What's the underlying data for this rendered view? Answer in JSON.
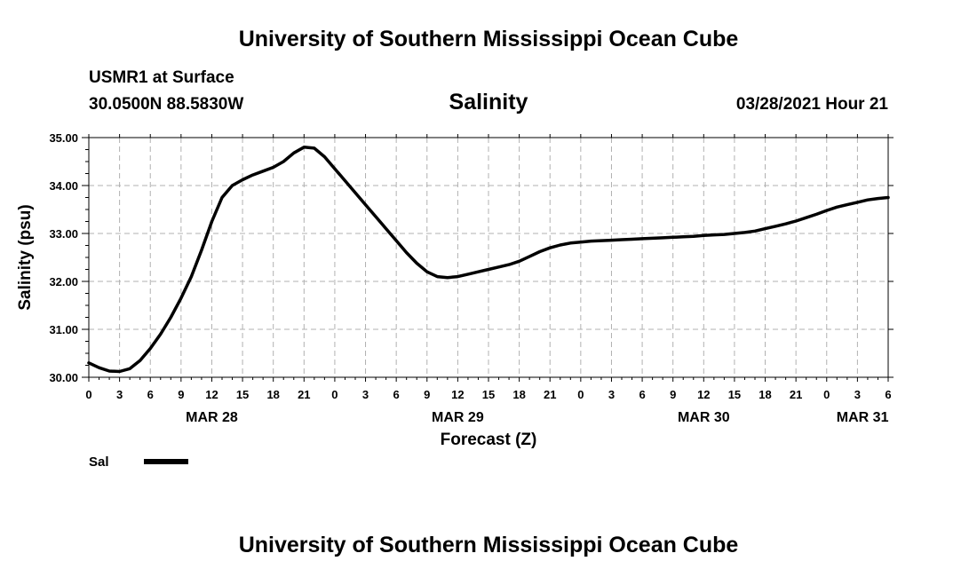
{
  "header": {
    "title": "University of Southern Mississippi Ocean Cube",
    "station": "USMR1 at Surface",
    "coordinates": "30.0500N  88.5830W",
    "timestamp": "03/28/2021 Hour 21"
  },
  "footer": {
    "title": "University of Southern Mississippi Ocean Cube"
  },
  "chart_data": {
    "type": "line",
    "title": "Salinity",
    "xlabel": "Forecast (Z)",
    "ylabel": "Salinity (psu)",
    "ylim": [
      30.0,
      35.0
    ],
    "y_ticks": [
      "30.00",
      "31.00",
      "32.00",
      "33.00",
      "34.00",
      "35.00"
    ],
    "x_range_hours": [
      0,
      78
    ],
    "x_ticks": [
      "0",
      "3",
      "6",
      "9",
      "12",
      "15",
      "18",
      "21",
      "0",
      "3",
      "6",
      "9",
      "12",
      "15",
      "18",
      "21",
      "0",
      "3",
      "6",
      "9",
      "12",
      "15",
      "18",
      "21",
      "0",
      "3",
      "6"
    ],
    "date_labels": [
      {
        "label": "MAR 28",
        "hour": 12
      },
      {
        "label": "MAR 29",
        "hour": 36
      },
      {
        "label": "MAR 30",
        "hour": 60
      },
      {
        "label": "MAR 31",
        "hour": 75.5
      }
    ],
    "grid": true,
    "legend": [
      {
        "name": "Sal",
        "color": "#000000"
      }
    ],
    "series": [
      {
        "name": "Sal",
        "color": "#000000",
        "x": [
          0,
          1,
          2,
          3,
          4,
          5,
          6,
          7,
          8,
          9,
          10,
          11,
          12,
          13,
          14,
          15,
          16,
          17,
          18,
          19,
          20,
          21,
          22,
          23,
          24,
          25,
          26,
          27,
          28,
          29,
          30,
          31,
          32,
          33,
          34,
          35,
          36,
          37,
          38,
          39,
          40,
          41,
          42,
          43,
          44,
          45,
          46,
          47,
          48,
          49,
          50,
          51,
          52,
          53,
          54,
          55,
          56,
          57,
          58,
          59,
          60,
          61,
          62,
          63,
          64,
          65,
          66,
          67,
          68,
          69,
          70,
          71,
          72,
          73,
          74,
          75,
          76,
          77,
          78
        ],
        "values": [
          30.3,
          30.2,
          30.13,
          30.12,
          30.18,
          30.35,
          30.6,
          30.9,
          31.25,
          31.65,
          32.1,
          32.65,
          33.25,
          33.75,
          34.0,
          34.12,
          34.22,
          34.3,
          34.38,
          34.5,
          34.68,
          34.8,
          34.78,
          34.6,
          34.35,
          34.1,
          33.85,
          33.6,
          33.35,
          33.1,
          32.85,
          32.6,
          32.38,
          32.2,
          32.1,
          32.08,
          32.1,
          32.15,
          32.2,
          32.25,
          32.3,
          32.35,
          32.42,
          32.52,
          32.62,
          32.7,
          32.76,
          32.8,
          32.82,
          32.84,
          32.85,
          32.86,
          32.87,
          32.88,
          32.89,
          32.9,
          32.91,
          32.92,
          32.93,
          32.94,
          32.96,
          32.97,
          32.98,
          33.0,
          33.02,
          33.05,
          33.1,
          33.15,
          33.2,
          33.26,
          33.33,
          33.4,
          33.48,
          33.55,
          33.6,
          33.65,
          33.7,
          33.73,
          33.75
        ]
      }
    ]
  }
}
